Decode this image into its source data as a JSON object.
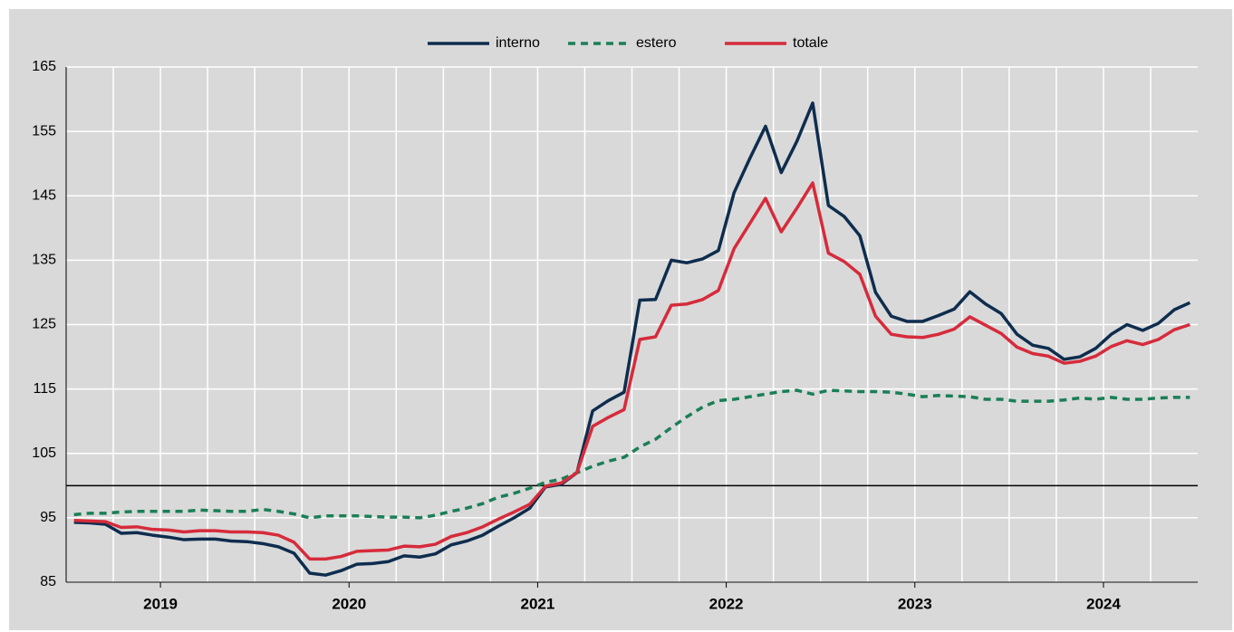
{
  "chart_data": {
    "type": "line",
    "categories": [
      null,
      null,
      null,
      null,
      null,
      null,
      null,
      null,
      null,
      null,
      null,
      null,
      null,
      null,
      null,
      null,
      null,
      null,
      null,
      null,
      null,
      null,
      null,
      null,
      null,
      null,
      null,
      null,
      null,
      null,
      null,
      null,
      null,
      null,
      null,
      null,
      null,
      null,
      null,
      null,
      null,
      null,
      null,
      null,
      null,
      null,
      null,
      null,
      null,
      null,
      null,
      null,
      null,
      null,
      null,
      null,
      null,
      null,
      null,
      null,
      null,
      null,
      null,
      null,
      null,
      null,
      null,
      null,
      null,
      null,
      null,
      null
    ],
    "x_labels": [
      "2019",
      "2020",
      "2021",
      "2022",
      "2023",
      "2024"
    ],
    "series": [
      {
        "name": "interno",
        "color": "#0e2d4e",
        "dash": false,
        "values": [
          94.3,
          94.2,
          94.0,
          92.6,
          92.7,
          92.3,
          92.0,
          91.6,
          91.7,
          91.7,
          91.4,
          91.3,
          91.0,
          90.5,
          89.5,
          86.4,
          86.1,
          86.8,
          87.8,
          87.9,
          88.2,
          89.1,
          88.9,
          89.4,
          90.8,
          91.4,
          92.3,
          93.7,
          95.0,
          96.5,
          99.8,
          100.2,
          102.0,
          111.6,
          113.2,
          114.5,
          128.8,
          128.9,
          135.0,
          134.6,
          135.2,
          136.5,
          145.5,
          150.8,
          155.8,
          148.6,
          153.5,
          159.4,
          143.5,
          141.8,
          138.8,
          130.0,
          126.3,
          125.5,
          125.5,
          126.4,
          127.4,
          130.1,
          128.2,
          126.7,
          123.5,
          121.8,
          121.3,
          119.6,
          120.0,
          121.3,
          123.5,
          125.0,
          124.1,
          125.2,
          127.3,
          128.4
        ]
      },
      {
        "name": "estero",
        "color": "#1a7f56",
        "dash": true,
        "values": [
          95.5,
          95.7,
          95.7,
          95.9,
          96.0,
          96.0,
          96.0,
          96.0,
          96.2,
          96.1,
          96.0,
          96.0,
          96.3,
          96.0,
          95.6,
          95.0,
          95.3,
          95.3,
          95.3,
          95.2,
          95.1,
          95.1,
          95.0,
          95.4,
          96.0,
          96.5,
          97.2,
          98.2,
          98.8,
          99.6,
          100.5,
          101.0,
          102.0,
          103.0,
          103.8,
          104.4,
          106.0,
          107.2,
          109.0,
          110.7,
          112.2,
          113.2,
          113.4,
          113.8,
          114.2,
          114.6,
          114.8,
          114.2,
          114.8,
          114.7,
          114.6,
          114.6,
          114.5,
          114.2,
          113.8,
          114.0,
          113.9,
          113.8,
          113.4,
          113.4,
          113.1,
          113.1,
          113.1,
          113.3,
          113.6,
          113.4,
          113.7,
          113.4,
          113.4,
          113.6,
          113.7,
          113.7
        ]
      },
      {
        "name": "totale",
        "color": "#d62b3b",
        "dash": false,
        "values": [
          94.6,
          94.5,
          94.4,
          93.5,
          93.6,
          93.2,
          93.1,
          92.8,
          93.0,
          93.0,
          92.8,
          92.8,
          92.7,
          92.3,
          91.2,
          88.6,
          88.6,
          89.0,
          89.8,
          89.9,
          90.0,
          90.6,
          90.5,
          90.9,
          92.1,
          92.7,
          93.6,
          94.8,
          95.9,
          97.1,
          99.9,
          100.4,
          102.0,
          109.2,
          110.6,
          111.8,
          122.7,
          123.1,
          128.0,
          128.2,
          128.9,
          130.3,
          136.8,
          140.7,
          144.6,
          139.4,
          143.1,
          147.0,
          136.1,
          134.8,
          132.8,
          126.3,
          123.5,
          123.1,
          123.0,
          123.5,
          124.3,
          126.2,
          124.9,
          123.6,
          121.5,
          120.5,
          120.1,
          119.0,
          119.3,
          120.1,
          121.6,
          122.5,
          121.9,
          122.7,
          124.2,
          125.0
        ]
      }
    ],
    "ylim": [
      85,
      165
    ],
    "yticks": [
      85,
      95,
      105,
      115,
      125,
      135,
      145,
      155,
      165
    ],
    "reference_line": 100,
    "grid": true,
    "legend": "top"
  }
}
